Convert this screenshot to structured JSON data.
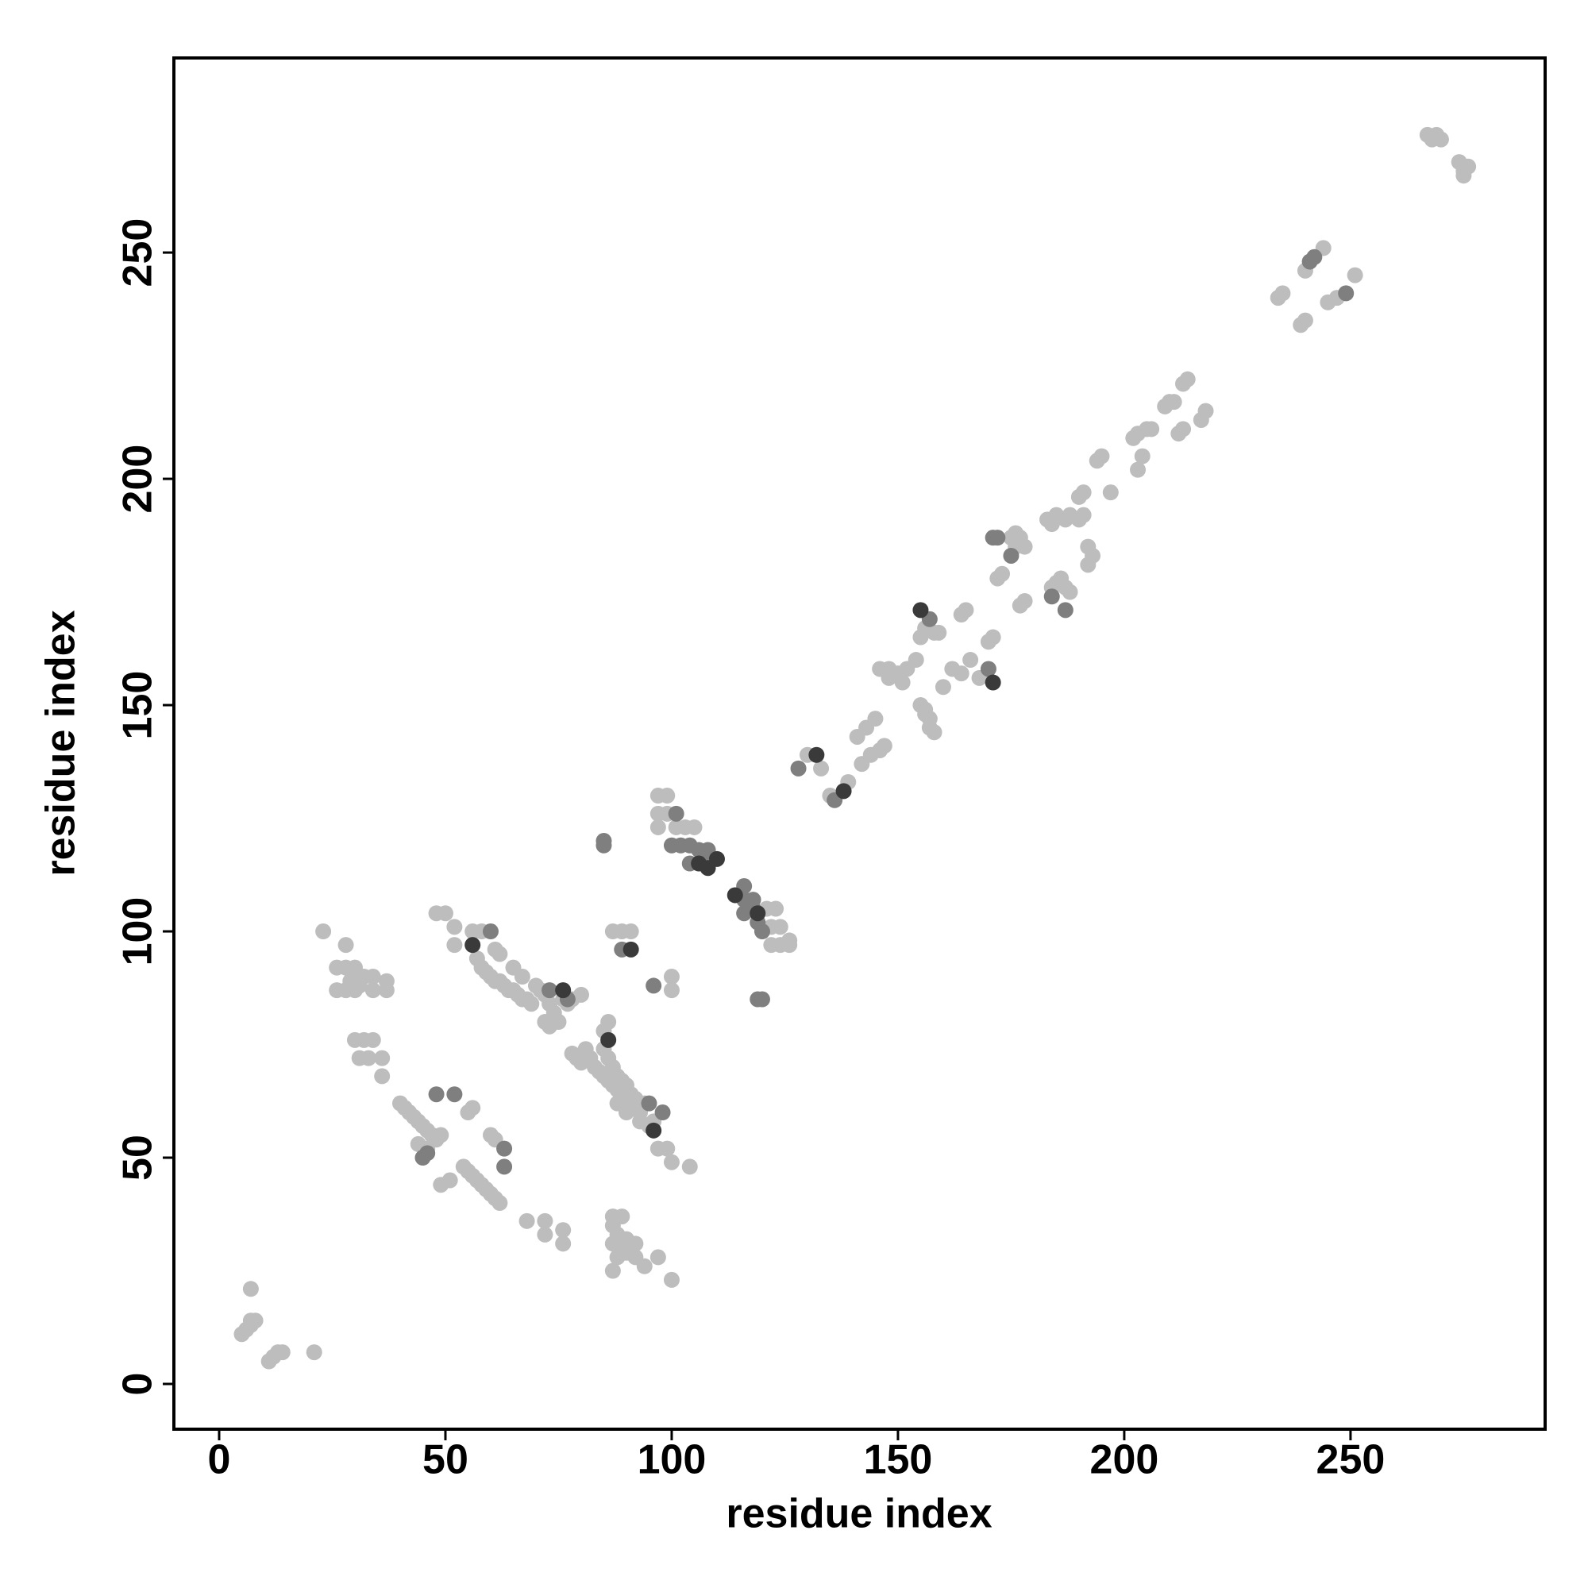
{
  "chart_data": {
    "type": "scatter",
    "x_label": "residue index",
    "y_label": "residue index",
    "xlim": [
      -10,
      293
    ],
    "ylim": [
      -10,
      293
    ],
    "xticks": [
      0,
      50,
      100,
      150,
      200,
      250
    ],
    "yticks": [
      0,
      50,
      100,
      150,
      200,
      250
    ],
    "series": [
      {
        "color": "#bdbdbd",
        "x": [
          5,
          6,
          7,
          7,
          8,
          7,
          11,
          12,
          13,
          14,
          21,
          23,
          28,
          26,
          28,
          30,
          32,
          29,
          31,
          26,
          28,
          30,
          34,
          34,
          37,
          37,
          30,
          32,
          34,
          31,
          33,
          36,
          36,
          40,
          41,
          42,
          43,
          44,
          45,
          46,
          47,
          48,
          49,
          44,
          46,
          55,
          56,
          51,
          54,
          55,
          56,
          57,
          58,
          59,
          60,
          61,
          62,
          60,
          61,
          68,
          72,
          72,
          76,
          76,
          49,
          48,
          50,
          52,
          52,
          58,
          56,
          57,
          58,
          59,
          60,
          61,
          62,
          63,
          64,
          65,
          66,
          67,
          68,
          69,
          70,
          71,
          72,
          73,
          74,
          75,
          76,
          77,
          78,
          80,
          72,
          73,
          61,
          62,
          65,
          67,
          78,
          79,
          80,
          81,
          82,
          83,
          84,
          85,
          86,
          87,
          88,
          89,
          90,
          91,
          92,
          93,
          85,
          86,
          85,
          86,
          87,
          88,
          89,
          90,
          91,
          92,
          94,
          96,
          97,
          99,
          100,
          104,
          95,
          93,
          90,
          88,
          87,
          89,
          87,
          88,
          90,
          87,
          89,
          92,
          90,
          92,
          88,
          87,
          94,
          97,
          100,
          87,
          89,
          91,
          100,
          100,
          97,
          99,
          97,
          99,
          97,
          101,
          103,
          105,
          121,
          123,
          122,
          124,
          122,
          124,
          126,
          126,
          130,
          133,
          135,
          139,
          141,
          143,
          145,
          142,
          144,
          146,
          147,
          146,
          148,
          148,
          150,
          151,
          152,
          154,
          155,
          156,
          157,
          157,
          158,
          156,
          155,
          156,
          158,
          159,
          160,
          162,
          164,
          165,
          164,
          166,
          168,
          170,
          171,
          172,
          173,
          175,
          176,
          177,
          176,
          178,
          177,
          178,
          184,
          185,
          186,
          187,
          188,
          183,
          184,
          185,
          187,
          188,
          190,
          191,
          192,
          193,
          192,
          190,
          191,
          194,
          195,
          197,
          203,
          204,
          202,
          203,
          205,
          206,
          209,
          210,
          211,
          213,
          214,
          212,
          213,
          217,
          218,
          234,
          235,
          240,
          244,
          239,
          240,
          245,
          247,
          251,
          267,
          268,
          269,
          270,
          274,
          275,
          276,
          275
        ],
        "y": [
          11,
          12,
          13,
          14,
          14,
          21,
          5,
          6,
          7,
          7,
          7,
          100,
          97,
          92,
          92,
          92,
          90,
          89,
          88,
          87,
          87,
          87,
          90,
          87,
          89,
          87,
          76,
          76,
          76,
          72,
          72,
          72,
          68,
          62,
          61,
          60,
          59,
          58,
          57,
          56,
          55,
          54,
          55,
          53,
          52,
          60,
          61,
          45,
          48,
          47,
          46,
          45,
          44,
          43,
          42,
          41,
          40,
          55,
          54,
          36,
          36,
          33,
          34,
          31,
          44,
          104,
          104,
          101,
          97,
          100,
          100,
          94,
          92,
          91,
          90,
          89,
          89,
          88,
          87,
          87,
          86,
          85,
          85,
          84,
          88,
          87,
          86,
          84,
          82,
          80,
          85,
          84,
          85,
          86,
          80,
          79,
          96,
          95,
          92,
          90,
          73,
          72,
          71,
          74,
          72,
          70,
          69,
          68,
          67,
          66,
          65,
          64,
          63,
          62,
          61,
          60,
          78,
          80,
          74,
          72,
          70,
          68,
          67,
          66,
          64,
          63,
          62,
          58,
          52,
          52,
          49,
          48,
          57,
          58,
          60,
          62,
          37,
          37,
          35,
          33,
          32,
          31,
          30,
          31,
          29,
          28,
          28,
          25,
          26,
          28,
          23,
          100,
          100,
          100,
          90,
          87,
          130,
          130,
          126,
          126,
          123,
          123,
          123,
          123,
          105,
          105,
          101,
          101,
          97,
          97,
          98,
          97,
          139,
          136,
          130,
          133,
          143,
          145,
          147,
          137,
          139,
          140,
          141,
          158,
          158,
          156,
          157,
          155,
          158,
          160,
          150,
          149,
          147,
          145,
          144,
          148,
          165,
          167,
          166,
          166,
          154,
          158,
          170,
          171,
          157,
          160,
          156,
          164,
          165,
          178,
          179,
          187,
          188,
          187,
          185,
          185,
          172,
          173,
          176,
          177,
          178,
          176,
          175,
          191,
          190,
          192,
          191,
          192,
          196,
          197,
          181,
          183,
          185,
          191,
          192,
          204,
          205,
          197,
          202,
          205,
          209,
          210,
          211,
          211,
          216,
          217,
          217,
          221,
          222,
          210,
          211,
          213,
          215,
          240,
          241,
          246,
          251,
          234,
          235,
          239,
          240,
          245,
          276,
          275,
          276,
          275,
          270,
          268,
          269,
          267
        ]
      },
      {
        "color": "#7f7f7f",
        "x": [
          48,
          52,
          63,
          63,
          45,
          46,
          60,
          73,
          77,
          95,
          98,
          85,
          85,
          89,
          96,
          101,
          100,
          102,
          104,
          106,
          108,
          104,
          108,
          116,
          116,
          118,
          116,
          118,
          119,
          120,
          119,
          120,
          128,
          136,
          157,
          170,
          171,
          172,
          175,
          184,
          187,
          241,
          242,
          249
        ],
        "y": [
          64,
          64,
          52,
          48,
          50,
          51,
          100,
          87,
          85,
          62,
          60,
          120,
          119,
          96,
          88,
          126,
          119,
          119,
          119,
          118,
          118,
          115,
          116,
          110,
          107,
          107,
          104,
          105,
          102,
          100,
          85,
          85,
          136,
          129,
          169,
          158,
          187,
          187,
          183,
          174,
          171,
          248,
          249,
          241
        ]
      },
      {
        "color": "#3a3a3a",
        "x": [
          56,
          76,
          86,
          96,
          91,
          106,
          108,
          110,
          114,
          119,
          132,
          138,
          155,
          171
        ],
        "y": [
          97,
          87,
          76,
          56,
          96,
          115,
          114,
          116,
          108,
          104,
          139,
          131,
          171,
          155
        ]
      }
    ]
  }
}
